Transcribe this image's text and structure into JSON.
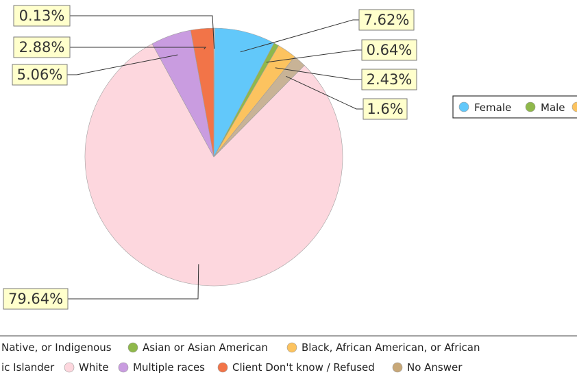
{
  "chart_data": {
    "type": "pie",
    "slices": [
      {
        "key": "c1",
        "value": 0.13,
        "label": "0.13%",
        "color": "#e7e7e7"
      },
      {
        "key": "c2",
        "value": 7.62,
        "label": "7.62%",
        "color": "#62c8fa"
      },
      {
        "key": "c3",
        "value": 0.64,
        "label": "0.64%",
        "color": "#8fb84b"
      },
      {
        "key": "c4",
        "value": 2.43,
        "label": "2.43%",
        "color": "#fcc35f"
      },
      {
        "key": "c5",
        "value": 1.6,
        "label": "1.6%",
        "color": "#c8b396"
      },
      {
        "key": "c6",
        "value": 79.64,
        "label": "79.64%",
        "color": "#fdd7de"
      },
      {
        "key": "c7",
        "value": 5.06,
        "label": "5.06%",
        "color": "#c99ce0"
      },
      {
        "key": "c8",
        "value": 2.88,
        "label": "2.88%",
        "color": "#f27448"
      }
    ],
    "legend_top": [
      {
        "label": "Female",
        "color": "#62c8fa"
      },
      {
        "label": "Male",
        "color": "#8fb84b"
      },
      {
        "label": "",
        "color": "#fcc35f"
      }
    ],
    "legend_bottom": [
      {
        "label": "Native, or Indigenous",
        "color": null
      },
      {
        "label": "Asian or Asian American",
        "color": "#8fb84b"
      },
      {
        "label": "Black, African American, or African",
        "color": "#fcc35f"
      },
      {
        "label": "ic Islander",
        "color": null
      },
      {
        "label": "White",
        "color": "#fdd7de"
      },
      {
        "label": "Multiple races",
        "color": "#c99ce0"
      },
      {
        "label": "Client Don't know / Refused",
        "color": "#f27448"
      },
      {
        "label": "No Answer",
        "color": "#c8a878"
      }
    ]
  }
}
